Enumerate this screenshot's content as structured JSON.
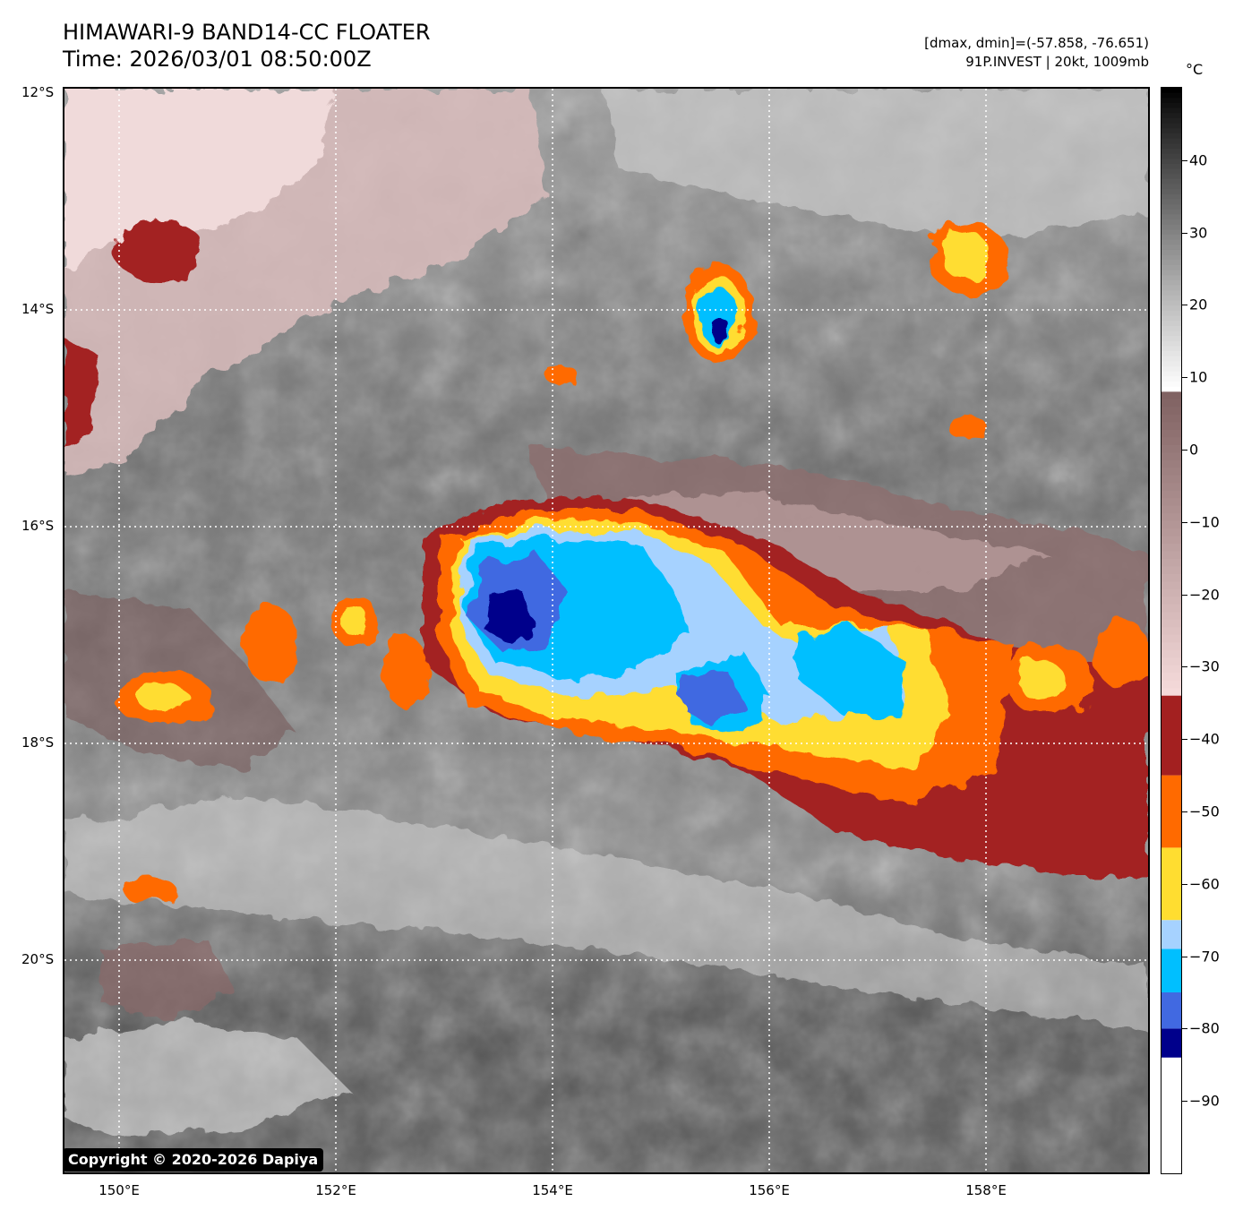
{
  "header": {
    "title": "HIMAWARI-9 BAND14-CC FLOATER",
    "time": "Time: 2026/03/01 08:50:00Z",
    "range": "[dmax, dmin]=(-57.858, -76.651)",
    "storm": "91P.INVEST | 20kt, 1009mb"
  },
  "map": {
    "lat_labels": [
      "12°S",
      "14°S",
      "16°S",
      "18°S",
      "20°S"
    ],
    "lon_labels": [
      "150°E",
      "152°E",
      "154°E",
      "156°E",
      "158°E"
    ],
    "extent": {
      "lon_min": 149.5,
      "lon_max": 159.5,
      "lat_min": -22,
      "lat_max": -12
    },
    "copyright": "Copyright © 2020-2026 Dapiya"
  },
  "colorbar": {
    "unit": "°C",
    "min": -100,
    "max": 50,
    "tick_labels": [
      "40",
      "30",
      "20",
      "10",
      "0",
      "−10",
      "−20",
      "−30",
      "−40",
      "−50",
      "−60",
      "−70",
      "−80",
      "−90"
    ],
    "tick_values": [
      40,
      30,
      20,
      10,
      0,
      -10,
      -20,
      -30,
      -40,
      -50,
      -60,
      -70,
      -80,
      -90
    ],
    "bands": [
      {
        "from": -100,
        "to": -84,
        "color": "#ffffff"
      },
      {
        "from": -84,
        "to": -80,
        "color": "#00008b"
      },
      {
        "from": -80,
        "to": -75,
        "color": "#4169e1"
      },
      {
        "from": -75,
        "to": -69,
        "color": "#00bfff"
      },
      {
        "from": -69,
        "to": -65,
        "color": "#a6d2ff"
      },
      {
        "from": -65,
        "to": -55,
        "color": "#ffdd30"
      },
      {
        "from": -55,
        "to": -45,
        "color": "#ff6a00"
      },
      {
        "from": -45,
        "to": -34,
        "color": "#a32020"
      }
    ]
  }
}
